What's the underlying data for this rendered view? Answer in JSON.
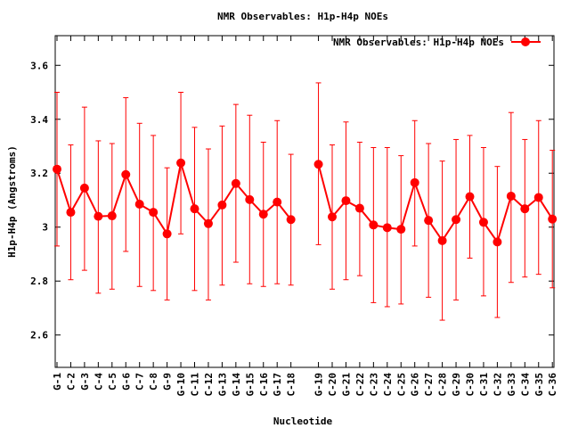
{
  "chart_data": {
    "type": "line",
    "title": "NMR Observables: H1p-H4p NOEs",
    "xlabel": "Nucleotide",
    "ylabel": "H1p-H4p (Angstroms)",
    "ylim": [
      2.48,
      3.71
    ],
    "yticks": [
      "2.6",
      "2.8",
      "3",
      "3.2",
      "3.4",
      "3.6"
    ],
    "ytick_values": [
      2.6,
      2.8,
      3.0,
      3.2,
      3.4,
      3.6
    ],
    "grid": false,
    "legend_position": "top-right",
    "series": [
      {
        "name": "NMR Observables: H1p-H4p NOEs",
        "color": "#ff0000",
        "segments": [
          {
            "x": [
              "G-1",
              "C-2",
              "G-3",
              "C-4",
              "C-5",
              "G-6",
              "C-7",
              "C-8",
              "G-9",
              "G-10",
              "C-11",
              "C-12",
              "G-13",
              "G-14",
              "G-15",
              "C-16",
              "G-17",
              "C-18"
            ],
            "y": [
              3.215,
              3.055,
              3.145,
              3.04,
              3.042,
              3.195,
              3.085,
              3.055,
              2.975,
              3.238,
              3.068,
              3.013,
              3.082,
              3.162,
              3.102,
              3.048,
              3.093,
              3.028
            ],
            "err_low": [
              2.93,
              2.805,
              2.84,
              2.755,
              2.77,
              2.91,
              2.78,
              2.765,
              2.73,
              2.975,
              2.765,
              2.73,
              2.785,
              2.87,
              2.79,
              2.78,
              2.79,
              2.785
            ],
            "err_high": [
              3.5,
              3.305,
              3.445,
              3.32,
              3.31,
              3.48,
              3.385,
              3.34,
              3.22,
              3.5,
              3.37,
              3.29,
              3.375,
              3.455,
              3.415,
              3.315,
              3.395,
              3.27
            ]
          },
          {
            "x": [
              "G-19",
              "C-20",
              "G-21",
              "C-22",
              "C-23",
              "C-24",
              "C-25",
              "G-26",
              "C-27",
              "C-28",
              "G-29",
              "C-30",
              "C-31",
              "C-32",
              "G-33",
              "C-34",
              "G-35",
              "C-36"
            ],
            "y": [
              3.233,
              3.038,
              3.098,
              3.07,
              3.008,
              2.998,
              2.992,
              3.165,
              3.025,
              2.95,
              3.028,
              3.113,
              3.018,
              2.945,
              3.115,
              3.068,
              3.11,
              3.03
            ],
            "err_low": [
              2.935,
              2.77,
              2.805,
              2.82,
              2.72,
              2.705,
              2.715,
              2.93,
              2.74,
              2.655,
              2.73,
              2.885,
              2.745,
              2.665,
              2.795,
              2.815,
              2.825,
              2.775
            ],
            "err_high": [
              3.535,
              3.305,
              3.39,
              3.315,
              3.295,
              3.295,
              3.265,
              3.395,
              3.31,
              3.245,
              3.325,
              3.34,
              3.295,
              3.225,
              3.425,
              3.325,
              3.395,
              3.285
            ]
          }
        ]
      }
    ]
  }
}
